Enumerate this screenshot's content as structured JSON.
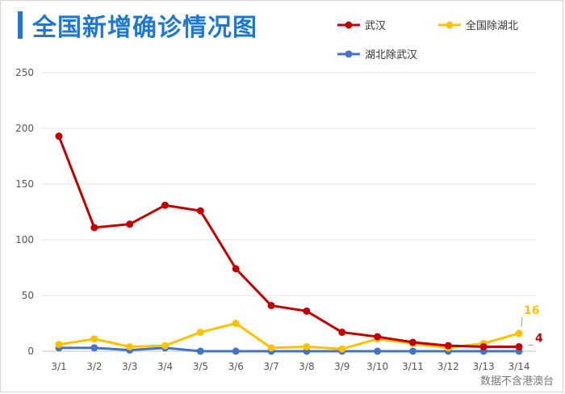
{
  "title": "全国新增确诊情况图",
  "source": "数据不含港澳台",
  "colors": {
    "accent": "#1f77d4",
    "grid": "#e3e3e3"
  },
  "chart_data": {
    "type": "line",
    "title": "全国新增确诊情况图",
    "xlabel": "",
    "ylabel": "",
    "ylim": [
      0,
      250
    ],
    "yticks": [
      0,
      50,
      100,
      150,
      200,
      250
    ],
    "grid": true,
    "legend_position": "top-right",
    "categories": [
      "3/1",
      "3/2",
      "3/3",
      "3/4",
      "3/5",
      "3/6",
      "3/7",
      "3/8",
      "3/9",
      "3/10",
      "3/11",
      "3/12",
      "3/13",
      "3/14"
    ],
    "series": [
      {
        "name": "武汉",
        "color": "#c00000",
        "values": [
          193,
          111,
          114,
          131,
          126,
          74,
          41,
          36,
          17,
          13,
          8,
          5,
          4,
          4
        ]
      },
      {
        "name": "全国除湖北",
        "color": "#ffc000",
        "values": [
          6,
          11,
          4,
          5,
          17,
          25,
          3,
          4,
          2,
          11,
          7,
          3,
          7,
          16
        ]
      },
      {
        "name": "湖北除武汉",
        "color": "#4472c4",
        "values": [
          3,
          3,
          1,
          3,
          0,
          0,
          0,
          0,
          0,
          0,
          0,
          0,
          0,
          0
        ]
      }
    ],
    "annotations": [
      {
        "series": "全国除湖北",
        "category": "3/14",
        "text": "16"
      },
      {
        "series": "武汉",
        "category": "3/14",
        "text": "4"
      }
    ]
  }
}
